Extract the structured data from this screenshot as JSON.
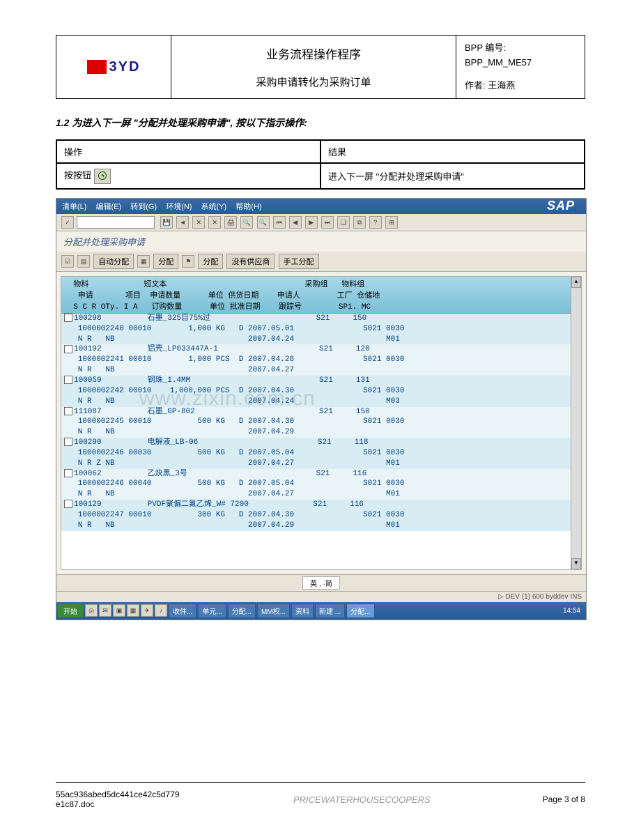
{
  "header": {
    "logo_text": "3YD",
    "title": "业务流程操作程序",
    "subtitle": "采购申请转化为采购订单",
    "bpp_label": "BPP 编号:",
    "bpp_code": "BPP_MM_ME57",
    "author_label": "作者:",
    "author_name": "王海燕"
  },
  "section": {
    "heading": "1.2 为进入下一屏 \"分配并处理采购申请\", 按以下指示操作:"
  },
  "action_table": {
    "h1": "操作",
    "h2": "结果",
    "r1c1": "按按钮",
    "r1c2": "进入下一屏 \"分配并处理采购申请\""
  },
  "sap": {
    "menubar": [
      "清单(L)",
      "编辑(E)",
      "转到(G)",
      "环境(N)",
      "系统(Y)",
      "帮助(H)"
    ],
    "logo": "SAP",
    "screen_title": "分配并处理采购申请",
    "toolbar2": [
      "自动分配",
      "分配",
      "分配",
      "没有供应商",
      "手工分配"
    ],
    "grid_header": "  物料            短文本                              采购组   物料组\n   申请       项目  申请数量      单位 供货日期    申请人        工厂 仓储地\n  S C R OTy. I A   订购数量      单位 批准日期    跟踪号        SP1. MC",
    "rows": [
      {
        "l1": "100298          石墨_325目75%过                       S21     150",
        "l2": " 1000002240 00010        1,000 KG   D 2007.05.01               S021 0030",
        "l3": " N R   NB                             2007.04.24                    M01"
      },
      {
        "l1": "100192          铝壳_LP033447A-1                      S21     120",
        "l2": " 1000002241 00010        1,000 PCS  D 2007.04.28               S021 0030",
        "l3": " N R   NB                             2007.04.27"
      },
      {
        "l1": "100059          钢珠_1.4MM                            S21     131",
        "l2": " 1000002242 00010    1,000,000 PCS  D 2007.04.30               S021 0030",
        "l3": " N R   NB                             2007.04.24                    M03"
      },
      {
        "l1": "111087          石墨_GP-802                           S21     150",
        "l2": " 1000002245 00010          500 KG   D 2007.04.30               S021 0030",
        "l3": " N R   NB                             2007.04.29"
      },
      {
        "l1": "100290          电解液_LB-06                          S21     118",
        "l2": " 1000002246 00030          500 KG   D 2007.05.04               S021 0030",
        "l3": " N R Z NB                             2007.04.27                    M01"
      },
      {
        "l1": "100062          乙炔黑_3号                            S21     116",
        "l2": " 1000002246 00040          500 KG   D 2007.05.04               S021 0030",
        "l3": " N R   NB                             2007.04.27                    M01"
      },
      {
        "l1": "100129          PVDF聚偏二氟乙烯_W# 7200              S21     116",
        "l2": " 1000002247 00010          300 KG   D 2007.04.30               S021 0030",
        "l3": " N R   NB                             2007.04.29                    M01"
      }
    ],
    "ime": "英 , ·简 ",
    "status": "DEV (1) 600   byddev   INS",
    "taskbar_start": "开始",
    "taskbar_items": [
      "收件...",
      "单元...",
      "分配...",
      "MM权...",
      "资料",
      "新建 ...",
      "分配..."
    ],
    "clock": "14:54"
  },
  "watermark": "www.zixin.com.cn",
  "footer": {
    "doc": "55ac936abed5dc441ce42c5d779e1c87.doc",
    "pwc": "PRICEWATERHOUSECOOPERS",
    "page": "Page 3 of 8"
  }
}
